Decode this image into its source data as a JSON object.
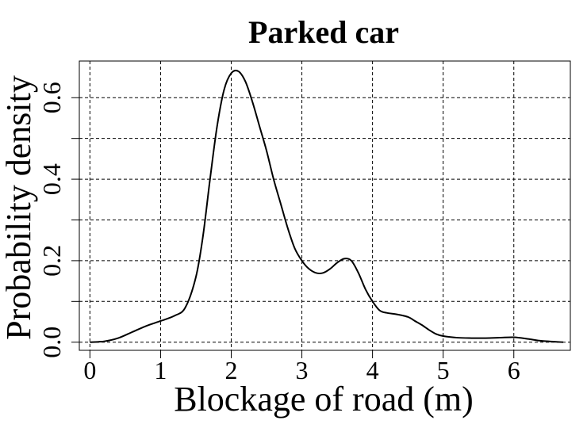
{
  "chart_data": {
    "type": "line",
    "title": "Parked car",
    "xlabel": "Blockage of road (m)",
    "ylabel": "Probability density",
    "xlim": [
      -0.15,
      6.8
    ],
    "ylim": [
      -0.02,
      0.69
    ],
    "x_ticks": [
      0,
      1,
      2,
      3,
      4,
      5,
      6
    ],
    "x_tick_labels": [
      "0",
      "1",
      "2",
      "3",
      "4",
      "5",
      "6"
    ],
    "y_ticks": [
      0.0,
      0.2,
      0.4,
      0.6
    ],
    "y_tick_labels": [
      "0.0",
      "0.2",
      "0.4",
      "0.6"
    ],
    "y_minor_ticks": [
      0.1,
      0.3,
      0.5
    ],
    "grid": true,
    "series": [
      {
        "x": [
          0.0,
          0.2,
          0.4,
          0.6,
          0.8,
          1.0,
          1.2,
          1.35,
          1.5,
          1.6,
          1.7,
          1.8,
          1.9,
          2.0,
          2.1,
          2.2,
          2.3,
          2.4,
          2.5,
          2.6,
          2.7,
          2.8,
          2.9,
          3.0,
          3.1,
          3.2,
          3.3,
          3.4,
          3.5,
          3.6,
          3.7,
          3.8,
          3.9,
          4.0,
          4.1,
          4.2,
          4.35,
          4.5,
          4.6,
          4.7,
          4.8,
          4.9,
          5.0,
          5.2,
          5.4,
          5.6,
          5.8,
          6.0,
          6.2,
          6.4,
          6.7
        ],
        "y": [
          0.0,
          0.002,
          0.01,
          0.025,
          0.04,
          0.052,
          0.065,
          0.085,
          0.16,
          0.26,
          0.4,
          0.53,
          0.62,
          0.66,
          0.665,
          0.64,
          0.59,
          0.53,
          0.47,
          0.4,
          0.34,
          0.28,
          0.23,
          0.2,
          0.18,
          0.17,
          0.17,
          0.18,
          0.195,
          0.205,
          0.2,
          0.17,
          0.13,
          0.1,
          0.078,
          0.072,
          0.068,
          0.062,
          0.052,
          0.042,
          0.03,
          0.02,
          0.015,
          0.011,
          0.01,
          0.01,
          0.011,
          0.012,
          0.008,
          0.003,
          0.0
        ]
      }
    ]
  }
}
